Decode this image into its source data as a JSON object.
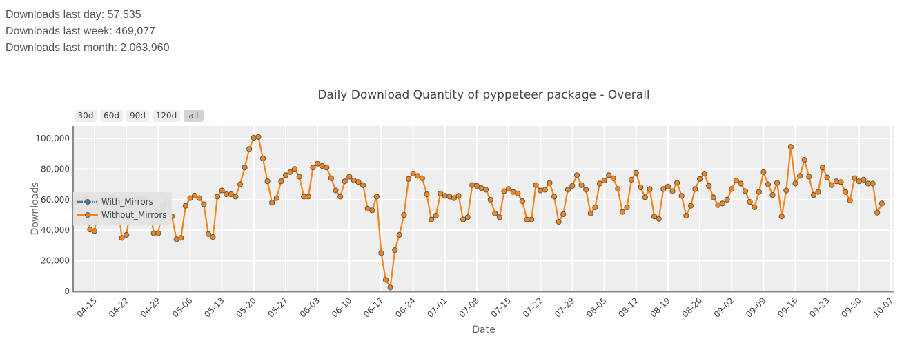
{
  "stats": {
    "last_day": "Downloads last day: 57,535",
    "last_week": "Downloads last week: 469,077",
    "last_month": "Downloads last month: 2,063,960"
  },
  "range_selector": {
    "buttons": [
      {
        "label": "30d",
        "active": false
      },
      {
        "label": "60d",
        "active": false
      },
      {
        "label": "90d",
        "active": false
      },
      {
        "label": "120d",
        "active": false
      },
      {
        "label": "all",
        "active": true
      }
    ]
  },
  "colors": {
    "plot_bg": "#eeeeee",
    "grid": "#ffffff",
    "axis": "#888888",
    "with_mirrors": "#4c78a8",
    "without_mirrors": "#f58518",
    "marker_edge": "#555555",
    "legend_bg": "#e2e2e2"
  },
  "chart_data": {
    "type": "line",
    "title": "Daily Download Quantity of pyppeteer package - Overall",
    "xlabel": "Date",
    "ylabel": "Downloads",
    "ylim": [
      0,
      108000
    ],
    "yticks": [
      0,
      20000,
      40000,
      60000,
      80000,
      100000
    ],
    "ytick_labels": [
      "0",
      "20,000",
      "40,000",
      "60,000",
      "80,000",
      "100,000"
    ],
    "xtick_labels": [
      "04-15",
      "04-22",
      "04-29",
      "05-06",
      "05-13",
      "05-20",
      "05-27",
      "06-03",
      "06-10",
      "06-17",
      "06-24",
      "07-01",
      "07-08",
      "07-15",
      "07-22",
      "07-29",
      "08-05",
      "08-12",
      "08-19",
      "08-26",
      "09-02",
      "09-09",
      "09-16",
      "09-23",
      "09-30",
      "10-07"
    ],
    "grid": true,
    "legend_position": "left-inside",
    "start_date": "04-11",
    "series": [
      {
        "name": "With_Mirrors",
        "values": []
      },
      {
        "name": "Without_Mirrors",
        "values": [
          58000,
          60000,
          62000,
          40500,
          39500,
          58000,
          60000,
          61000,
          62000,
          60000,
          35000,
          37000,
          57000,
          60000,
          61000,
          60000,
          58000,
          38000,
          38000,
          56000,
          58500,
          49000,
          34000,
          35000,
          56000,
          61000,
          62600,
          61000,
          57000,
          37500,
          35600,
          62000,
          66000,
          63500,
          63500,
          62000,
          70000,
          81000,
          93000,
          100500,
          101000,
          87000,
          72000,
          58000,
          61000,
          72000,
          76000,
          78000,
          80000,
          75000,
          62000,
          62000,
          81000,
          83500,
          82000,
          81000,
          74000,
          66000,
          62000,
          72000,
          75000,
          72500,
          71500,
          69500,
          54000,
          53000,
          62000,
          25000,
          7500,
          2500,
          27000,
          37000,
          50000,
          73500,
          77000,
          75500,
          74000,
          63500,
          47000,
          49500,
          64000,
          62500,
          62000,
          61000,
          62500,
          47000,
          48500,
          69500,
          69000,
          67500,
          66500,
          60000,
          51000,
          48500,
          65500,
          67000,
          65000,
          64000,
          59000,
          47000,
          47000,
          69500,
          66000,
          66500,
          71000,
          62000,
          45500,
          50500,
          66500,
          69000,
          76000,
          69500,
          66500,
          51000,
          55000,
          70500,
          72500,
          76000,
          74000,
          67000,
          52000,
          55000,
          73000,
          77500,
          68000,
          61500,
          67000,
          49000,
          47500,
          67000,
          68500,
          65500,
          71000,
          62500,
          49500,
          56000,
          67000,
          73500,
          77000,
          69000,
          61500,
          56500,
          57500,
          60000,
          67000,
          72500,
          70500,
          65500,
          58500,
          55000,
          65000,
          78000,
          70000,
          63000,
          71000,
          49000,
          66000,
          94500,
          70500,
          75500,
          86000,
          75000,
          63000,
          65000,
          81000,
          74500,
          69500,
          72000,
          71500,
          65000,
          59500,
          74000,
          72000,
          73000,
          70500,
          70500,
          51500,
          57500
        ]
      }
    ]
  }
}
